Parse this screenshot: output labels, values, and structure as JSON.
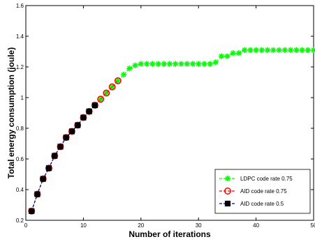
{
  "chart_data": {
    "type": "line",
    "title": "",
    "xlabel": "Number of iterations",
    "ylabel": "Total energy consumption (joule)",
    "xlim": [
      0,
      50
    ],
    "ylim": [
      0.2,
      1.6
    ],
    "x_ticks": [
      0,
      10,
      20,
      30,
      40,
      50
    ],
    "x_tick_labels": [
      "0",
      "10",
      "20",
      "30",
      "40",
      "50"
    ],
    "y_ticks": [
      0.2,
      0.4,
      0.6,
      0.8,
      1.0,
      1.2,
      1.4,
      1.6
    ],
    "y_tick_labels": [
      "0.2",
      "0.4",
      "0.6",
      "0.8",
      "1",
      "1.2",
      "1.4",
      "1.6"
    ],
    "grid": false,
    "legend_position": "bottom-right",
    "series": [
      {
        "name": "LDPC code rate 0.75",
        "color": "#00ff00",
        "line_style": "dashed",
        "marker": "asterisk",
        "x": [
          1,
          2,
          3,
          4,
          5,
          6,
          7,
          8,
          9,
          10,
          11,
          12,
          13,
          14,
          15,
          16,
          17,
          18,
          19,
          20,
          21,
          22,
          23,
          24,
          25,
          26,
          27,
          28,
          29,
          30,
          31,
          32,
          33,
          34,
          35,
          36,
          37,
          38,
          39,
          40,
          41,
          42,
          43,
          44,
          45,
          46,
          47,
          48,
          49,
          50
        ],
        "values": [
          0.26,
          0.37,
          0.47,
          0.54,
          0.62,
          0.68,
          0.74,
          0.78,
          0.82,
          0.87,
          0.91,
          0.95,
          0.99,
          1.03,
          1.07,
          1.11,
          1.15,
          1.19,
          1.21,
          1.22,
          1.22,
          1.22,
          1.22,
          1.22,
          1.22,
          1.22,
          1.22,
          1.22,
          1.22,
          1.22,
          1.22,
          1.22,
          1.23,
          1.27,
          1.27,
          1.29,
          1.29,
          1.31,
          1.31,
          1.31,
          1.31,
          1.31,
          1.31,
          1.31,
          1.31,
          1.31,
          1.31,
          1.31,
          1.31,
          1.31
        ]
      },
      {
        "name": "AID code rate 0.75",
        "color": "#ff0000",
        "line_style": "dashed",
        "marker": "circle",
        "x": [
          1,
          2,
          3,
          4,
          5,
          6,
          7,
          8,
          9,
          10,
          11,
          12,
          13,
          14,
          15,
          16
        ],
        "values": [
          0.26,
          0.37,
          0.47,
          0.54,
          0.62,
          0.68,
          0.74,
          0.78,
          0.82,
          0.87,
          0.91,
          0.95,
          0.99,
          1.03,
          1.07,
          1.11
        ]
      },
      {
        "name": "AID code rate 0.5",
        "color": "#0000cc",
        "line_style": "dashed",
        "marker": "square",
        "x": [
          1,
          2,
          3,
          4,
          5,
          6,
          7,
          8,
          9,
          10,
          11,
          12
        ],
        "values": [
          0.26,
          0.37,
          0.47,
          0.54,
          0.62,
          0.68,
          0.74,
          0.78,
          0.82,
          0.87,
          0.91,
          0.95
        ]
      }
    ]
  }
}
